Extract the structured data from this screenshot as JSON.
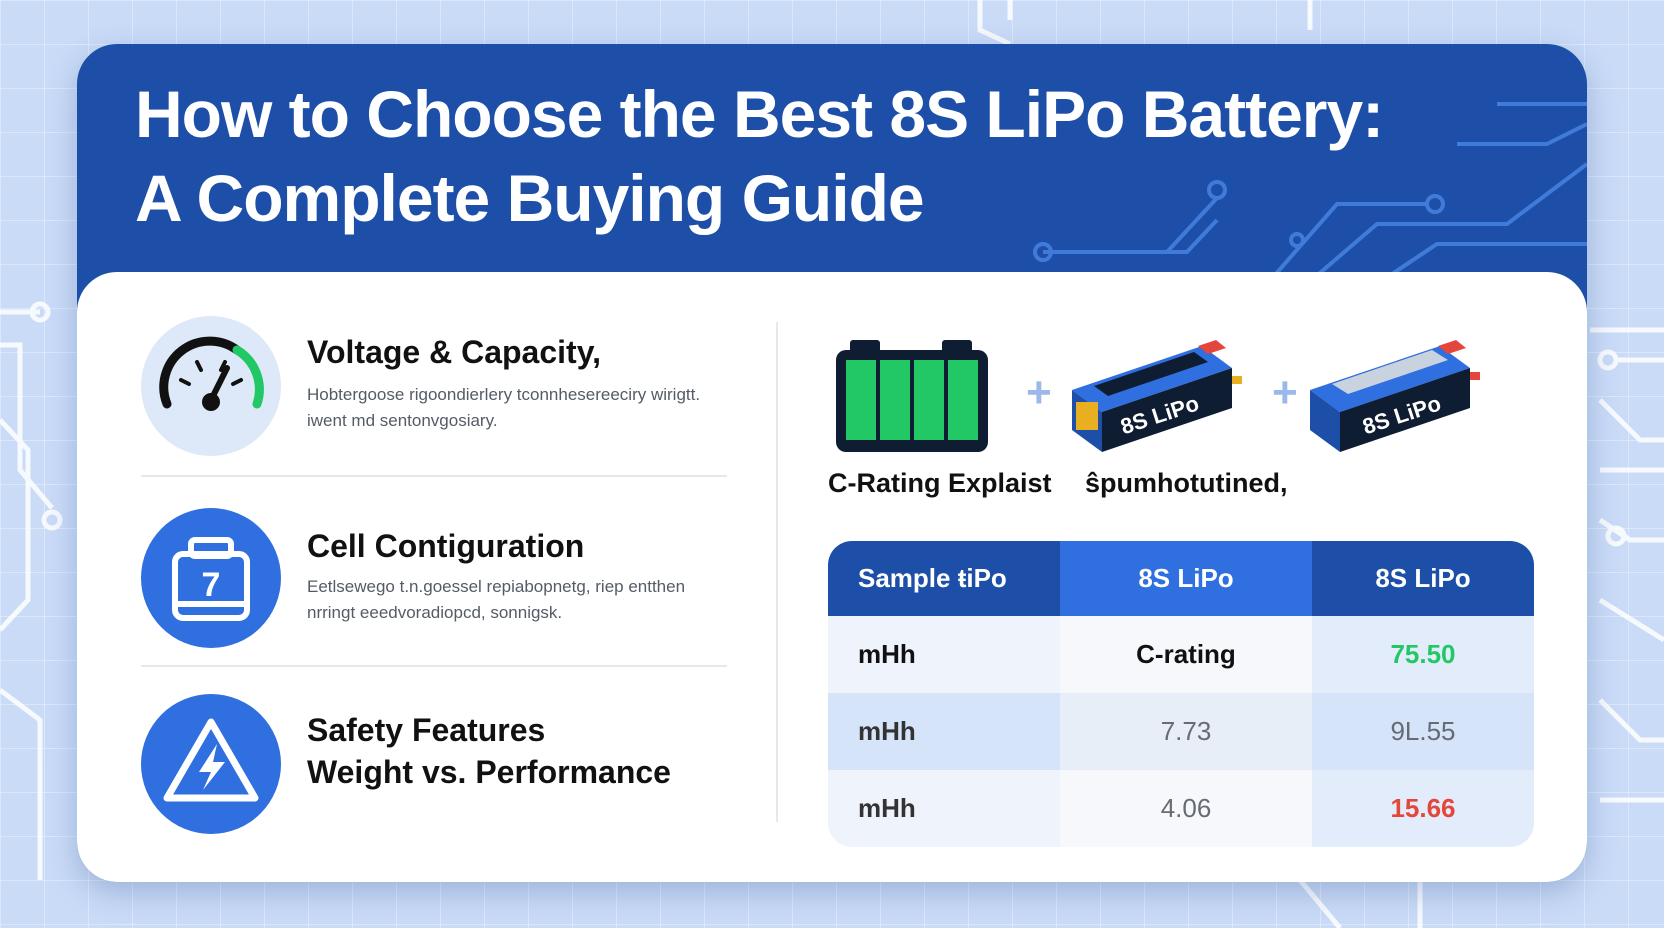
{
  "title": {
    "line1": "How to Choose the Best 8S LiPo Battery:",
    "line2": "A Complete Buying Guide"
  },
  "features": [
    {
      "title": "Voltage & Capacity,",
      "description": "Hobtergoose rigoondierlery tconnhesereeciry wirigtt. iwent md sentonvgosiary.",
      "icon": "speedometer-icon"
    },
    {
      "title": "Cell Contiguration",
      "description": "Eetlsewego t.n.goessel repiabopnetg, riep entthen nrringt eeedvoradiopcd, sonnigsk.",
      "icon": "battery-cell-icon"
    },
    {
      "title_line1": "Safety Features",
      "title_line2": "Weight vs. Performance",
      "icon": "lightning-warning-icon"
    }
  ],
  "batteries": {
    "label_left": "C-Rating Explaist",
    "label_right": "ŝpumhotutined,",
    "pack_label_1": "8S LiPo",
    "pack_label_2": "8S LiPo"
  },
  "table": {
    "headers": [
      "Sample ŧiPo",
      "8S LiPo",
      "8S LiPo"
    ],
    "rows": [
      [
        "mHh",
        "C-rating",
        "75.50"
      ],
      [
        "mHh",
        "7.73",
        "9L.55"
      ],
      [
        "mHh",
        "4.06",
        "15.66"
      ]
    ]
  },
  "colors": {
    "header_blue": "#1d4fa8",
    "accent_blue": "#2f6fe0",
    "green": "#22c766",
    "red": "#e3463a"
  }
}
